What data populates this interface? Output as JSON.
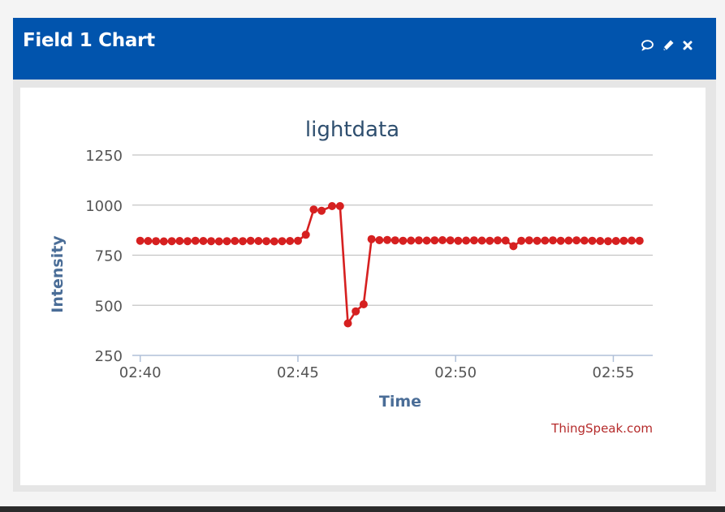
{
  "panel": {
    "title": "Field 1 Chart",
    "icons": [
      "comment-icon",
      "pencil-icon",
      "close-icon"
    ],
    "header_color": "#0154ad"
  },
  "chart_data": {
    "type": "line",
    "title": "lightdata",
    "xlabel": "Time",
    "ylabel": "Intensity",
    "credit": "ThingSpeak.com",
    "color": "#d62020",
    "ylim": [
      250,
      1250
    ],
    "yticks": [
      250,
      500,
      750,
      1000,
      1250
    ],
    "xlim": [
      "02:39:45",
      "02:56:15"
    ],
    "xticks": [
      "02:40",
      "02:45",
      "02:50",
      "02:55"
    ],
    "grid": true,
    "legend": "none",
    "series": [
      {
        "x": [
          "02:40:00",
          "02:40:15",
          "02:40:30",
          "02:40:45",
          "02:41:00",
          "02:41:15",
          "02:41:30",
          "02:41:45",
          "02:42:00",
          "02:42:15",
          "02:42:30",
          "02:42:45",
          "02:43:00",
          "02:43:15",
          "02:43:30",
          "02:43:45",
          "02:44:00",
          "02:44:15",
          "02:44:30",
          "02:44:45",
          "02:45:00",
          "02:45:15",
          "02:45:30",
          "02:45:45",
          "02:46:05",
          "02:46:20",
          "02:46:35",
          "02:46:50",
          "02:47:05",
          "02:47:20",
          "02:47:35",
          "02:47:50",
          "02:48:05",
          "02:48:20",
          "02:48:35",
          "02:48:50",
          "02:49:05",
          "02:49:20",
          "02:49:35",
          "02:49:50",
          "02:50:05",
          "02:50:20",
          "02:50:35",
          "02:50:50",
          "02:51:05",
          "02:51:20",
          "02:51:35",
          "02:51:50",
          "02:52:05",
          "02:52:20",
          "02:52:35",
          "02:52:50",
          "02:53:05",
          "02:53:20",
          "02:53:35",
          "02:53:50",
          "02:54:05",
          "02:54:20",
          "02:54:35",
          "02:54:50",
          "02:55:05",
          "02:55:20",
          "02:55:35",
          "02:55:50"
        ],
        "values": [
          822,
          821,
          820,
          819,
          820,
          821,
          820,
          822,
          821,
          820,
          819,
          820,
          821,
          820,
          822,
          821,
          820,
          819,
          820,
          821,
          822,
          852,
          978,
          972,
          995,
          995,
          410,
          470,
          505,
          830,
          825,
          826,
          824,
          822,
          823,
          824,
          823,
          824,
          825,
          824,
          822,
          823,
          824,
          823,
          822,
          824,
          823,
          795,
          822,
          824,
          822,
          823,
          824,
          822,
          823,
          824,
          823,
          822,
          821,
          820,
          821,
          822,
          823,
          822
        ]
      }
    ]
  }
}
